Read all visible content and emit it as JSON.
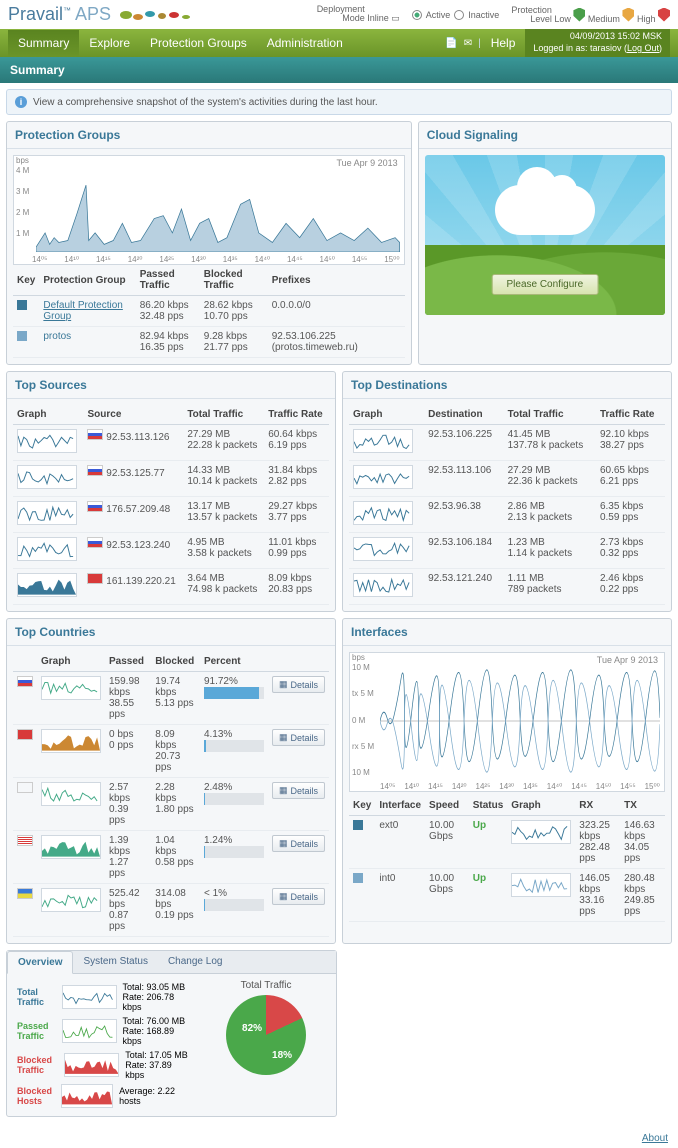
{
  "logo": {
    "brand": "Pravail",
    "suffix": "APS",
    "tm": "™"
  },
  "header": {
    "deployment_label": "Deployment\nMode",
    "deployment_value": "Inline",
    "active": "Active",
    "inactive": "Inactive",
    "protection_label": "Protection\nLevel",
    "low": "Low",
    "medium": "Medium",
    "high": "High"
  },
  "nav": {
    "items": [
      "Summary",
      "Explore",
      "Protection Groups",
      "Administration"
    ],
    "help": "Help"
  },
  "user": {
    "date": "04/09/2013 15:02 MSK",
    "text": "Logged in as: tarasiov (",
    "logout": "Log Out",
    "close": ")"
  },
  "subheader": "Summary",
  "info": "View a comprehensive snapshot of the system's activities during the last hour.",
  "pg": {
    "title": "Protection Groups",
    "date": "Tue Apr 9 2013",
    "yticks": [
      "4 M",
      "3 M",
      "2 M",
      "1 M",
      ""
    ],
    "yunit": "bps",
    "xticks": [
      "14⁰⁵",
      "14¹⁰",
      "14¹⁵",
      "14²⁰",
      "14²⁵",
      "14³⁰",
      "14³⁵",
      "14⁴⁰",
      "14⁴⁵",
      "14⁵⁰",
      "14⁵⁵",
      "15⁰⁰"
    ],
    "cols": [
      "Key",
      "Protection Group",
      "Passed Traffic",
      "Blocked Traffic",
      "Prefixes"
    ],
    "rows": [
      {
        "color": "#3a7898",
        "name": "Default Protection Group",
        "under": true,
        "passed": "86.20 kbps\n32.48 pps",
        "blocked": "28.62 kbps\n10.70 pps",
        "prefixes": "0.0.0.0/0"
      },
      {
        "color": "#7aa8c8",
        "name": "protos",
        "under": false,
        "passed": "82.94 kbps\n16.35 pps",
        "blocked": "9.28 kbps\n21.77 pps",
        "prefixes": "92.53.106.225 (protos.timeweb.ru)"
      }
    ]
  },
  "cloud": {
    "title": "Cloud Signaling",
    "btn": "Please Configure"
  },
  "sources": {
    "title": "Top Sources",
    "cols": [
      "Graph",
      "Source",
      "Total Traffic",
      "Traffic Rate"
    ],
    "rows": [
      {
        "flag": "ru",
        "src": "92.53.113.126",
        "tot": "27.29 MB\n22.28 k packets",
        "rate": "60.64 kbps\n6.19 pps"
      },
      {
        "flag": "ru",
        "src": "92.53.125.77",
        "tot": "14.33 MB\n10.14 k packets",
        "rate": "31.84 kbps\n2.82 pps"
      },
      {
        "flag": "ru",
        "src": "176.57.209.48",
        "tot": "13.17 MB\n13.57 k packets",
        "rate": "29.27 kbps\n3.77 pps"
      },
      {
        "flag": "ru",
        "src": "92.53.123.240",
        "tot": "4.95 MB\n3.58 k packets",
        "rate": "11.01 kbps\n0.99 pps"
      },
      {
        "flag": "cn",
        "src": "161.139.220.21",
        "tot": "3.64 MB\n74.98 k packets",
        "rate": "8.09 kbps\n20.83 pps"
      }
    ]
  },
  "dests": {
    "title": "Top Destinations",
    "cols": [
      "Graph",
      "Destination",
      "Total Traffic",
      "Traffic Rate"
    ],
    "rows": [
      {
        "dst": "92.53.106.225",
        "tot": "41.45 MB\n137.78 k packets",
        "rate": "92.10 kbps\n38.27 pps"
      },
      {
        "dst": "92.53.113.106",
        "tot": "27.29 MB\n22.36 k packets",
        "rate": "60.65 kbps\n6.21 pps"
      },
      {
        "dst": "92.53.96.38",
        "tot": "2.86 MB\n2.13 k packets",
        "rate": "6.35 kbps\n0.59 pps"
      },
      {
        "dst": "92.53.106.184",
        "tot": "1.23 MB\n1.14 k packets",
        "rate": "2.73 kbps\n0.32 pps"
      },
      {
        "dst": "92.53.121.240",
        "tot": "1.11 MB\n789 packets",
        "rate": "2.46 kbps\n0.22 pps"
      }
    ]
  },
  "countries": {
    "title": "Top Countries",
    "cols": [
      "",
      "Graph",
      "Passed",
      "Blocked",
      "Percent",
      ""
    ],
    "details": "Details",
    "rows": [
      {
        "flag": "ru",
        "passed": "159.98 kbps\n38.55 pps",
        "blocked": "19.74 kbps\n5.13 pps",
        "pct": "91.72%",
        "pctnum": 91
      },
      {
        "flag": "cn",
        "passed": "0 bps\n0 pps",
        "blocked": "8.09 kbps\n20.73 pps",
        "pct": "4.13%",
        "pctnum": 4
      },
      {
        "flag": "",
        "passed": "2.57 kbps\n0.39 pps",
        "blocked": "2.28 kbps\n1.80 pps",
        "pct": "2.48%",
        "pctnum": 2
      },
      {
        "flag": "us",
        "passed": "1.39 kbps\n1.27 pps",
        "blocked": "1.04 kbps\n0.58 pps",
        "pct": "1.24%",
        "pctnum": 1
      },
      {
        "flag": "ua",
        "passed": "525.42 bps\n0.87 pps",
        "blocked": "314.08 bps\n0.19 pps",
        "pct": "< 1%",
        "pctnum": 1
      }
    ]
  },
  "interfaces": {
    "title": "Interfaces",
    "date": "Tue Apr 9 2013",
    "yunit": "bps",
    "yticks": [
      "10 M",
      "tx 5 M",
      "0 M",
      "rx 5 M",
      "10 M"
    ],
    "xticks": [
      "14⁰⁵",
      "14¹⁰",
      "14¹⁵",
      "14²⁰",
      "14²⁵",
      "14³⁰",
      "14³⁵",
      "14⁴⁰",
      "14⁴⁵",
      "14⁵⁰",
      "14⁵⁵",
      "15⁰⁰"
    ],
    "cols": [
      "Key",
      "Interface",
      "Speed",
      "Status",
      "Graph",
      "RX",
      "TX"
    ],
    "rows": [
      {
        "color": "#3a7898",
        "name": "ext0",
        "speed": "10.00 Gbps",
        "status": "Up",
        "rx": "323.25 kbps\n282.48 pps",
        "tx": "146.63 kbps\n34.05 pps"
      },
      {
        "color": "#7aa8c8",
        "name": "int0",
        "speed": "10.00 Gbps",
        "status": "Up",
        "rx": "146.05 kbps\n33.16 pps",
        "tx": "280.48 kbps\n249.85 pps"
      }
    ]
  },
  "overview": {
    "tabs": [
      "Overview",
      "System Status",
      "Change Log"
    ],
    "total_traffic_title": "Total Traffic",
    "rows": [
      {
        "label": "Total\nTraffic",
        "color": "#3a7898",
        "val": "Total: 93.05 MB\nRate: 206.78 kbps"
      },
      {
        "label": "Passed\nTraffic",
        "color": "#4aa84a",
        "val": "Total: 76.00 MB\nRate: 168.89 kbps"
      },
      {
        "label": "Blocked\nTraffic",
        "color": "#d84848",
        "val": "Total: 17.05 MB\nRate: 37.89 kbps"
      },
      {
        "label": "Blocked\nHosts",
        "color": "#d84848",
        "val": "Average: 2.22 hosts"
      }
    ],
    "pie": {
      "green": "82%",
      "red": "18%"
    }
  },
  "footer": "About",
  "colors": {
    "area": "#b8d0e0",
    "line": "#3a7898",
    "green": "#4aa84a"
  }
}
